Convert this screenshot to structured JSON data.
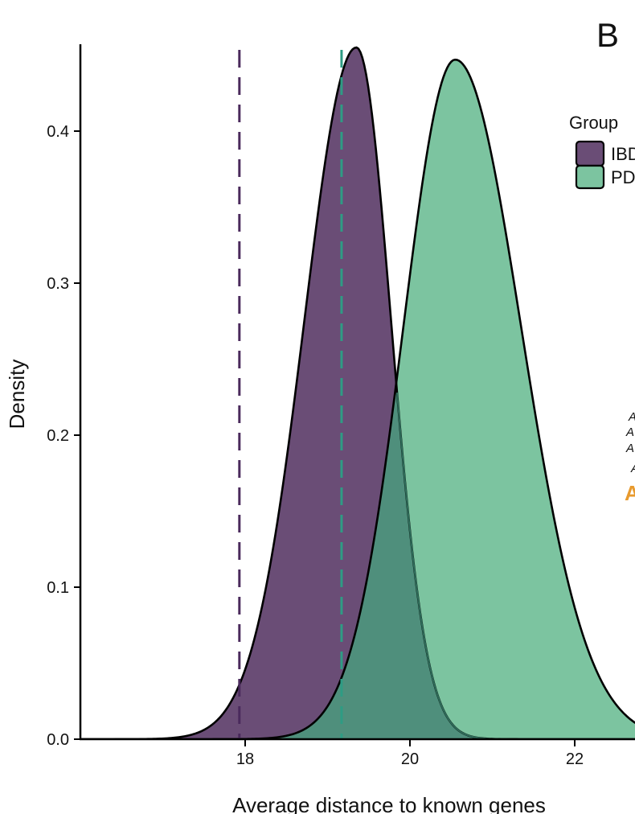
{
  "chart_data": {
    "type": "area",
    "subtype": "density",
    "panel_label": "B",
    "xlabel": "Average distance to known genes",
    "ylabel": "Density",
    "xlim": [
      16,
      23.5
    ],
    "ylim": [
      0,
      0.45
    ],
    "x_ticks": [
      18,
      20,
      22
    ],
    "x_tick_labels": [
      "18",
      "20",
      "22"
    ],
    "y_ticks": [
      0.0,
      0.1,
      0.2,
      0.3,
      0.4
    ],
    "y_tick_labels": [
      "0.0",
      "0.1",
      "0.2",
      "0.3",
      "0.4"
    ],
    "legend": {
      "title": "Group",
      "position": "top-right",
      "entries": [
        "IBD",
        "PD"
      ]
    },
    "series": [
      {
        "name": "IBD",
        "color": "#6A4D76",
        "peak_x": 19.35,
        "peak_density": 0.455,
        "sd_left": 0.63,
        "sd_right": 0.42,
        "vline_x": 17.93,
        "vline_color": "#4A2A5C"
      },
      {
        "name": "PD",
        "color": "#7CC4A0",
        "peak_x": 20.55,
        "peak_density": 0.447,
        "sd_left": 0.63,
        "sd_right": 0.8,
        "vline_x": 19.17,
        "vline_color": "#2E9C84"
      }
    ],
    "overlap_color": "#4F8F7C",
    "cropped_annotation_fragments": [
      "A",
      "A",
      "A",
      "A",
      "A"
    ]
  }
}
